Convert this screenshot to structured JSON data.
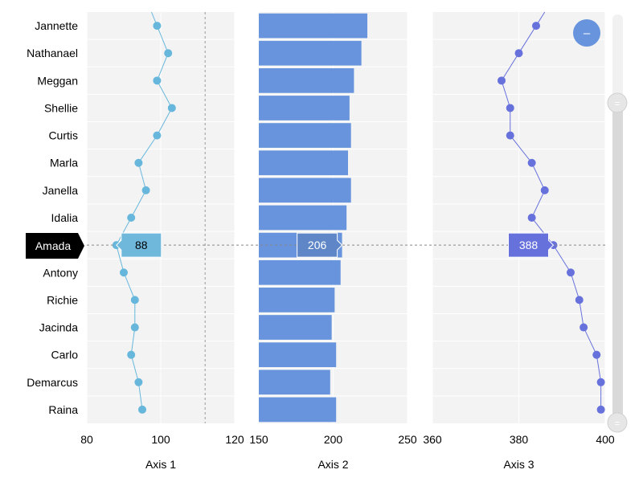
{
  "chart_data": {
    "type": "multi-panel",
    "categories": [
      "Jannette",
      "Nathanael",
      "Meggan",
      "Shellie",
      "Curtis",
      "Marla",
      "Janella",
      "Idalia",
      "Amada",
      "Antony",
      "Richie",
      "Jacinda",
      "Carlo",
      "Demarcus",
      "Raina"
    ],
    "panels": [
      {
        "type": "line",
        "axis_label": "Axis 1",
        "range": [
          80,
          120
        ],
        "ticks": [
          "80",
          "100",
          "120"
        ],
        "tick_values": [
          80,
          100,
          120
        ],
        "reference_line": 112,
        "color": "#67b7dc",
        "values": [
          99,
          102,
          99,
          103,
          99,
          94,
          96,
          92,
          88,
          90,
          93,
          93,
          92,
          94,
          95
        ]
      },
      {
        "type": "bar",
        "axis_label": "Axis 2",
        "range": [
          150,
          250
        ],
        "ticks": [
          "150",
          "200",
          "250"
        ],
        "tick_values": [
          150,
          200,
          250
        ],
        "color": "#6794dc",
        "values": [
          223,
          219,
          214,
          211,
          212,
          210,
          212,
          209,
          206,
          205,
          201,
          199,
          202,
          198,
          202
        ]
      },
      {
        "type": "line",
        "axis_label": "Axis 3",
        "range": [
          360,
          400
        ],
        "ticks": [
          "360",
          "380",
          "400"
        ],
        "tick_values": [
          360,
          380,
          400
        ],
        "color": "#6771dc",
        "values": [
          384,
          380,
          376,
          378,
          378,
          383,
          386,
          383,
          388,
          392,
          394,
          395,
          398,
          399,
          399
        ]
      }
    ],
    "cursor": {
      "category": "Amada",
      "tooltips": [
        "88",
        "206",
        "388"
      ]
    }
  },
  "controls": {
    "zoom_out_symbol": "–",
    "scrollbar_grip_symbol": "="
  }
}
